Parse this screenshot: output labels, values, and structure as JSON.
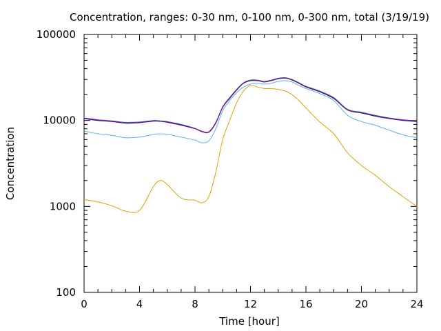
{
  "chart_data": {
    "type": "line",
    "title": "Concentration, ranges: 0-30 nm, 0-100 nm, 0-300 nm, total (3/19/19)",
    "xlabel": "Time [hour]",
    "ylabel": "Concentration",
    "x_scale": "linear",
    "y_scale": "log",
    "xlim": [
      0,
      24
    ],
    "ylim": [
      100,
      100000
    ],
    "x_ticks": [
      "0",
      "4",
      "8",
      "12",
      "16",
      "20",
      "24"
    ],
    "y_ticks": [
      "100",
      "1000",
      "10000",
      "100000"
    ],
    "grid": false,
    "legend": "none",
    "x": [
      0,
      1,
      2,
      3,
      4,
      5,
      5.5,
      6,
      7,
      8,
      8.5,
      9,
      9.5,
      10,
      10.5,
      11,
      11.5,
      12,
      12.5,
      13,
      13.5,
      14,
      14.5,
      15,
      15.5,
      16,
      17,
      18,
      19,
      20,
      21,
      22,
      23,
      24
    ],
    "series": [
      {
        "color": "#e69f00",
        "values": [
          1200,
          1130,
          1020,
          880,
          900,
          1700,
          2000,
          1800,
          1250,
          1180,
          1100,
          1300,
          2500,
          6000,
          10000,
          16000,
          22000,
          25500,
          24500,
          23500,
          23500,
          23000,
          22000,
          20000,
          17000,
          14000,
          9600,
          7000,
          4200,
          3000,
          2300,
          1700,
          1300,
          1000
        ]
      },
      {
        "color": "#56b4e9",
        "values": [
          7500,
          7000,
          6700,
          6300,
          6400,
          6900,
          7000,
          6900,
          6400,
          5900,
          5500,
          5800,
          8000,
          13000,
          17000,
          21000,
          24500,
          26500,
          27000,
          26500,
          27000,
          28500,
          29000,
          28000,
          25500,
          23500,
          20500,
          17000,
          11500,
          9700,
          8800,
          7700,
          6800,
          6300
        ]
      },
      {
        "color": "#009e73",
        "values": [
          10700,
          10200,
          9900,
          9500,
          9600,
          10000,
          9900,
          9700,
          9000,
          8100,
          7500,
          7400,
          9500,
          14500,
          18500,
          23000,
          27500,
          29500,
          29500,
          28500,
          29500,
          31000,
          31500,
          30000,
          27500,
          25000,
          22000,
          18500,
          13500,
          12500,
          11500,
          10700,
          10200,
          9900
        ]
      },
      {
        "color": "#0000b2",
        "values": [
          10500,
          10000,
          9700,
          9300,
          9400,
          9800,
          9750,
          9500,
          8800,
          8000,
          7400,
          7300,
          9300,
          14200,
          18000,
          22500,
          27000,
          29000,
          29000,
          28000,
          29000,
          30500,
          31000,
          29500,
          27000,
          24500,
          21500,
          18000,
          13200,
          12200,
          11200,
          10500,
          10000,
          9700
        ]
      },
      {
        "color": "#a00090",
        "values": [
          10600,
          10100,
          9800,
          9400,
          9500,
          9900,
          9800,
          9600,
          8900,
          8050,
          7450,
          7350,
          9400,
          14300,
          18200,
          22700,
          27200,
          29200,
          29200,
          28200,
          29200,
          30700,
          31200,
          29700,
          27200,
          24700,
          21700,
          18200,
          13300,
          12300,
          11300,
          10600,
          10100,
          9800
        ]
      }
    ]
  }
}
